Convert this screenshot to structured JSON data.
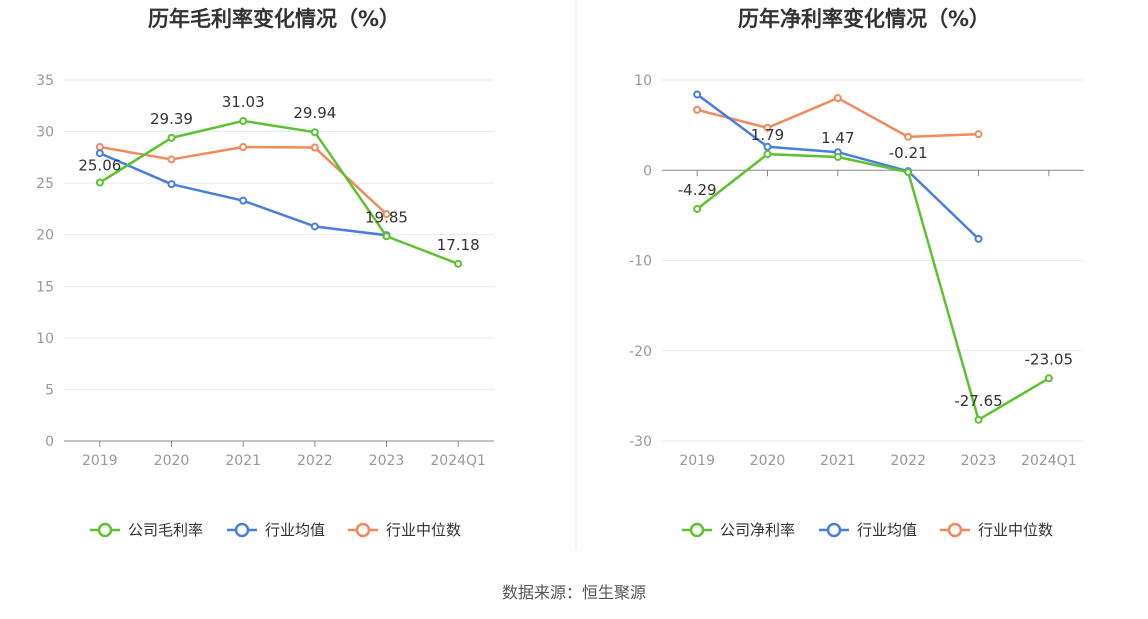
{
  "source_note": "数据来源：恒生聚源",
  "chart_data": [
    {
      "type": "line",
      "title": "历年毛利率变化情况（%）",
      "categories": [
        "2019",
        "2020",
        "2021",
        "2022",
        "2023",
        "2024Q1"
      ],
      "yticks": [
        0,
        5,
        10,
        15,
        20,
        25,
        30,
        35
      ],
      "ylim": [
        0,
        35
      ],
      "xlabel": "",
      "ylabel": "",
      "legend_position": "bottom-center",
      "series": [
        {
          "name": "公司毛利率",
          "color": "#5cc22f",
          "values": [
            25.06,
            29.39,
            31.03,
            29.94,
            19.85,
            17.18
          ],
          "labels": [
            "25.06",
            "29.39",
            "31.03",
            "29.94",
            "19.85",
            "17.18"
          ]
        },
        {
          "name": "行业均值",
          "color": "#4a7de0",
          "values": [
            27.9,
            24.9,
            23.3,
            20.8,
            19.95,
            null
          ]
        },
        {
          "name": "行业中位数",
          "color": "#f08a5d",
          "values": [
            28.5,
            27.3,
            28.5,
            28.45,
            22.0,
            null
          ]
        }
      ]
    },
    {
      "type": "line",
      "title": "历年净利率变化情况（%）",
      "categories": [
        "2019",
        "2020",
        "2021",
        "2022",
        "2023",
        "2024Q1"
      ],
      "yticks": [
        -30,
        -20,
        -10,
        0,
        10
      ],
      "ylim": [
        -30,
        10
      ],
      "xlabel": "",
      "ylabel": "",
      "legend_position": "bottom-center",
      "series": [
        {
          "name": "公司净利率",
          "color": "#5cc22f",
          "values": [
            -4.29,
            1.79,
            1.47,
            -0.21,
            -27.65,
            -23.05
          ],
          "labels": [
            "-4.29",
            "1.79",
            "1.47",
            "-0.21",
            "-27.65",
            "-23.05"
          ]
        },
        {
          "name": "行业均值",
          "color": "#4a7de0",
          "values": [
            8.4,
            2.6,
            2.0,
            -0.1,
            -7.6,
            null
          ]
        },
        {
          "name": "行业中位数",
          "color": "#f08a5d",
          "values": [
            6.7,
            4.7,
            8.0,
            3.7,
            4.0,
            null
          ]
        }
      ]
    }
  ]
}
